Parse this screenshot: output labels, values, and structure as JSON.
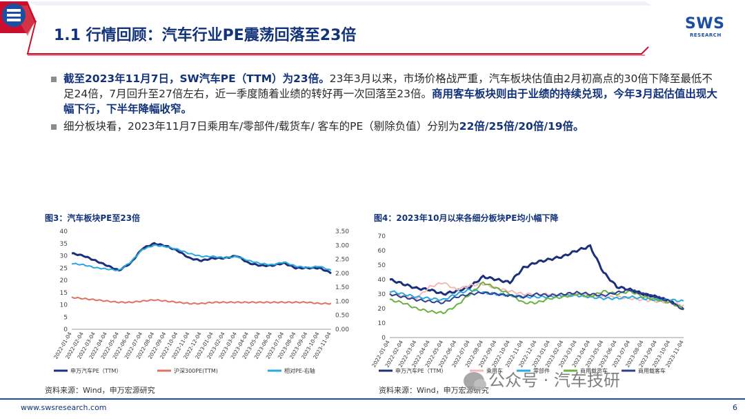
{
  "header": {
    "title": "1.1 行情回顾：汽车行业PE震荡回落至23倍",
    "logo_text": "SWS",
    "logo_sub": "RESEARCH",
    "accent_color": "#1a4fa3",
    "title_color": "#12337a"
  },
  "bullets": [
    {
      "bold1": "截至2023年11月7日，SW汽车PE（TTM）为23倍。",
      "text1": "23年3月以来，市场价格战严重，汽车板块估值由2月初高点的30倍下降至最低不足24倍，7月回升至27倍左右，近一季度随着业绩的转好再一次回落至23倍。",
      "bold2": "商用客车板块则由于业绩的持续兑现，今年3月起估值出现大幅下行，下半年降幅收窄。"
    },
    {
      "text1": "细分板块看，2023年11月7日乘用车/零部件/载货车/ 客车的PE（剔除负值）分别为",
      "bold1": "22倍/25倍/20倍/19倍。"
    }
  ],
  "fig3": {
    "title": "图3：汽车板块PE至23倍",
    "source": "资料来源：Wind，申万宏源研究"
  },
  "fig4": {
    "title": "图4：2023年10月以来各细分板块PE均小幅下降",
    "source": "资料来源：Wind，申万宏源研究"
  },
  "chart_data": [
    {
      "type": "line",
      "title": "图3：汽车板块PE至23倍",
      "x": [
        "2022-01-04",
        "2022-02-04",
        "2022-03-04",
        "2022-04-04",
        "2022-05-04",
        "2022-06-04",
        "2022-07-04",
        "2022-08-04",
        "2022-09-04",
        "2022-10-04",
        "2022-11-04",
        "2022-12-04",
        "2023-01-04",
        "2023-02-04",
        "2023-03-04",
        "2023-04-04",
        "2023-05-04",
        "2023-06-04",
        "2023-07-04",
        "2023-08-04",
        "2023-09-04",
        "2023-10-04",
        "2023-11-04"
      ],
      "ylim": [
        0,
        40
      ],
      "y2lim": [
        0,
        3.5
      ],
      "y_ticks": [
        0,
        5,
        10,
        15,
        20,
        25,
        30,
        35,
        40
      ],
      "y2_ticks": [
        "0.00",
        "0.50",
        "1.00",
        "1.50",
        "2.00",
        "2.50",
        "3.00",
        "3.50"
      ],
      "series": [
        {
          "name": "申万汽车PE（TTM）",
          "color": "#1b2f7a",
          "axis": "left",
          "values": [
            31,
            30,
            28,
            26,
            24,
            27,
            33,
            35,
            34,
            32,
            29,
            28,
            29,
            29,
            30,
            27,
            26,
            26,
            27,
            25,
            25,
            25,
            23
          ]
        },
        {
          "name": "沪深300PE(TTM)",
          "color": "#e07060",
          "axis": "left",
          "values": [
            13,
            12.5,
            12,
            11.5,
            11,
            11,
            11.5,
            12,
            11.5,
            11,
            10.5,
            10.5,
            11,
            11,
            11,
            11,
            11,
            11,
            11,
            11,
            11,
            10.5,
            10.5
          ]
        },
        {
          "name": "相对PE-右轴",
          "color": "#2aa8e0",
          "axis": "right",
          "values": [
            2.35,
            2.3,
            2.2,
            2.15,
            2.1,
            2.4,
            2.85,
            3.0,
            2.95,
            2.85,
            2.7,
            2.6,
            2.6,
            2.55,
            2.6,
            2.45,
            2.35,
            2.3,
            2.4,
            2.25,
            2.2,
            2.25,
            2.1
          ]
        }
      ]
    },
    {
      "type": "line",
      "title": "图4：2023年10月以来各细分板块PE均小幅下降",
      "x": [
        "2022-01-04",
        "2022-02-04",
        "2022-03-04",
        "2022-04-04",
        "2022-05-04",
        "2022-06-04",
        "2022-07-04",
        "2022-08-04",
        "2022-09-04",
        "2022-10-04",
        "2022-11-04",
        "2022-12-04",
        "2023-01-04",
        "2023-02-04",
        "2023-03-04",
        "2023-04-04",
        "2023-05-04",
        "2023-06-04",
        "2023-07-04",
        "2023-08-04",
        "2023-09-04",
        "2023-10-04",
        "2023-11-04"
      ],
      "ylim": [
        0,
        70
      ],
      "y_ticks": [
        0,
        10,
        20,
        30,
        40,
        50,
        60,
        70
      ],
      "series": [
        {
          "name": "申万汽车PE（TTM）",
          "color": "#1b2f7a",
          "values": [
            40,
            37,
            34,
            33,
            30,
            32,
            35,
            42,
            40,
            38,
            48,
            52,
            54,
            56,
            60,
            63,
            45,
            35,
            33,
            30,
            28,
            25,
            20
          ]
        },
        {
          "name": "乘用车",
          "color": "#f4b8b8",
          "values": [
            30,
            29,
            27,
            35,
            38,
            33,
            36,
            37,
            34,
            32,
            30,
            30,
            30,
            29,
            30,
            29,
            28,
            28,
            27,
            26,
            25,
            24,
            22
          ]
        },
        {
          "name": "零部件",
          "color": "#2aa8e0",
          "values": [
            32,
            30,
            28,
            27,
            26,
            30,
            33,
            31,
            30,
            29,
            28,
            28,
            28,
            29,
            29,
            28,
            27,
            27,
            28,
            27,
            26,
            26,
            25
          ]
        },
        {
          "name": "商用载货车",
          "color": "#6bb040",
          "values": [
            26,
            24,
            20,
            18,
            17,
            22,
            30,
            38,
            34,
            30,
            24,
            24,
            27,
            28,
            30,
            28,
            32,
            30,
            32,
            28,
            26,
            24,
            20
          ]
        },
        {
          "name": "商用载客车",
          "color": "#2b3f92",
          "values": [
            30,
            28,
            26,
            25,
            24,
            28,
            30,
            31,
            30,
            29,
            28,
            30,
            29,
            30,
            31,
            30,
            29,
            31,
            33,
            30,
            28,
            25,
            19
          ]
        }
      ]
    }
  ],
  "footer": {
    "url": "www.swsresearch.com",
    "page": "6"
  },
  "watermark": "公众号 · 汽车技研"
}
